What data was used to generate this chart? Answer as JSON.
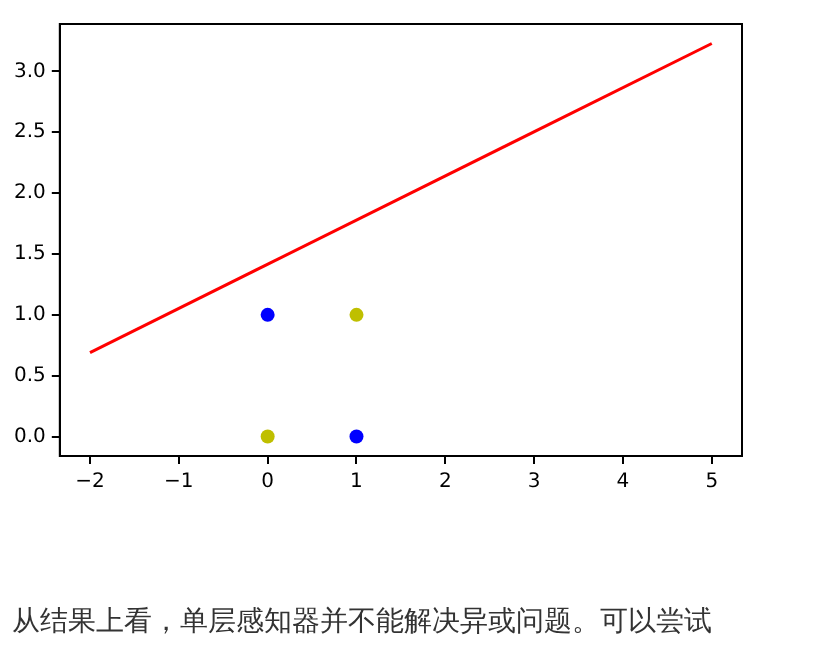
{
  "chart_data": {
    "type": "scatter",
    "series": [
      {
        "type": "line",
        "marker": "none",
        "color": "#ff0000",
        "x": [
          -2,
          5
        ],
        "values": [
          0.69,
          3.23
        ]
      },
      {
        "color": "#0000ff",
        "x": [
          0,
          1
        ],
        "values": [
          1,
          0
        ]
      },
      {
        "color": "#bfbf00",
        "x": [
          0,
          1
        ],
        "values": [
          0,
          1
        ]
      }
    ],
    "xlim": [
      -2.34,
      5.34
    ],
    "xticks": [
      -2,
      -1,
      0,
      1,
      2,
      3,
      4,
      5
    ],
    "ylim": [
      -0.16,
      3.39
    ],
    "yticks": [
      {
        "value": 0,
        "label": "0.0"
      },
      0.5,
      {
        "value": 1,
        "label": "1.0"
      },
      1.5,
      {
        "value": 2,
        "label": "2.0"
      },
      2.5,
      {
        "value": 3,
        "label": "3.0"
      }
    ],
    "grid": false,
    "legend": false,
    "marker": "circle",
    "annotations": [
      "从结果上看，单层感知器并不能解决异或问题。可以尝试"
    ]
  }
}
